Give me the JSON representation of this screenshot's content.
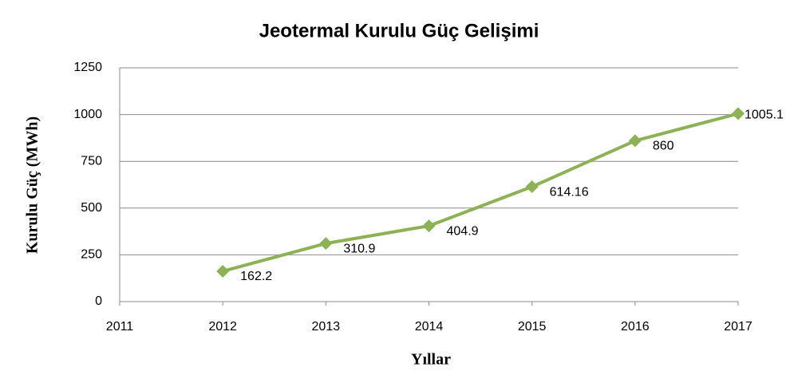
{
  "chart_data": {
    "type": "line",
    "title": "Jeotermal Kurulu Güç Gelişimi",
    "xlabel": "Yıllar",
    "ylabel": "Kurulu Güç  (MWh)",
    "x": [
      2012,
      2013,
      2014,
      2015,
      2016,
      2017
    ],
    "series": [
      {
        "color": "#8db255",
        "values": [
          162.2,
          310.9,
          404.9,
          614.16,
          860,
          1005.1
        ]
      }
    ],
    "xlim": [
      2011,
      2017
    ],
    "xticks": [
      2011,
      2012,
      2013,
      2014,
      2015,
      2016,
      2017
    ],
    "ylim": [
      0,
      1250
    ],
    "yticks": [
      0,
      250,
      500,
      750,
      1000,
      1250
    ],
    "grid": true
  }
}
